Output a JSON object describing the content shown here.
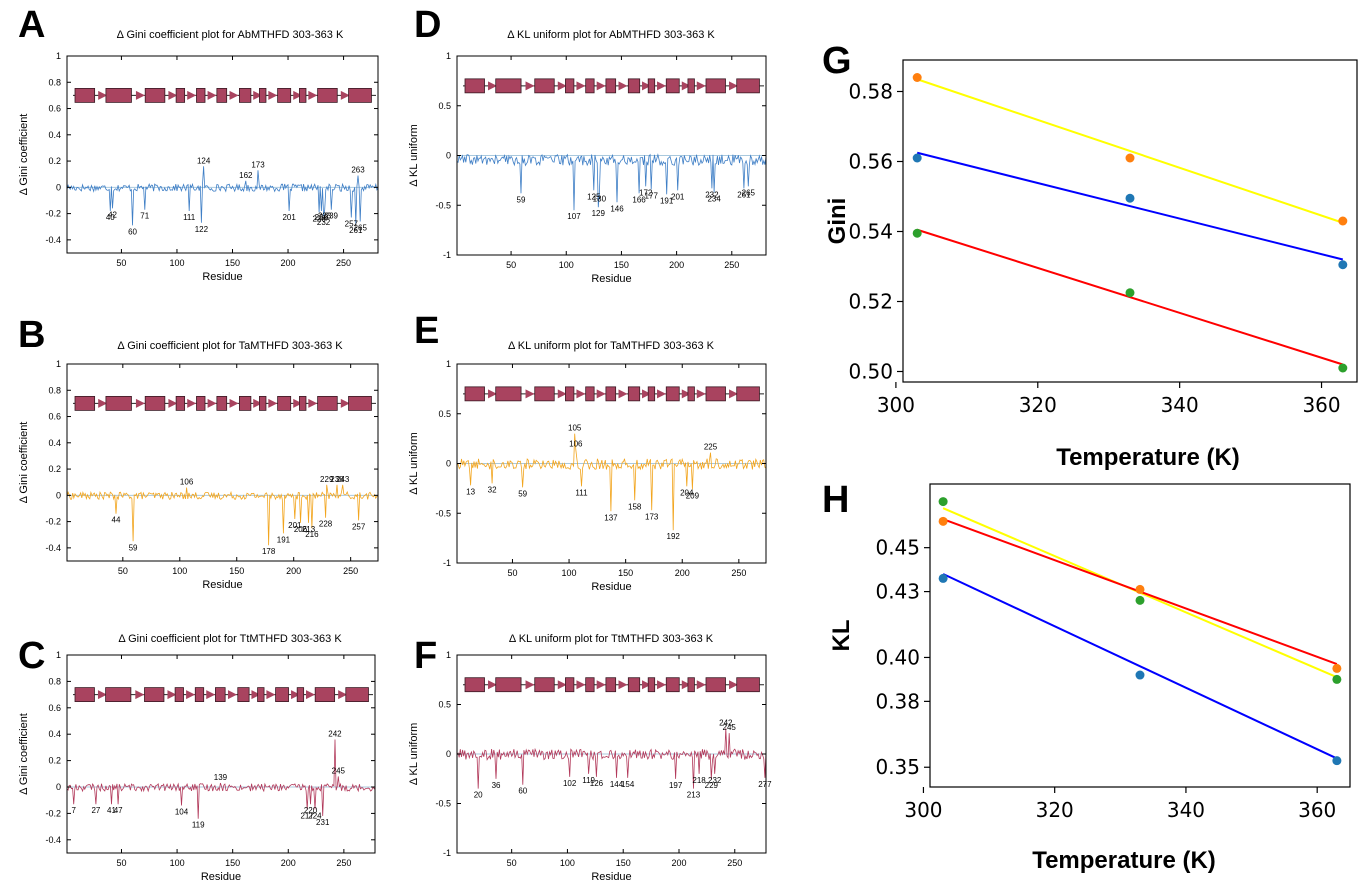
{
  "chart_data": [
    {
      "panel_label": "A",
      "type": "line",
      "title": "Δ Gini coefficient plot for AbMTHFD 303-363 K",
      "xlabel": "Residue",
      "ylabel": "Δ Gini coefficient",
      "xlim": [
        1,
        281
      ],
      "ylim": [
        -0.5,
        1
      ],
      "xticks": [
        "50",
        "100",
        "150",
        "200",
        "250"
      ],
      "yticks": [
        "-0.4",
        "-0.2",
        "0",
        "0.2",
        "0.4",
        "0.6",
        "0.8",
        "1"
      ],
      "series_color": "#3f7fc6",
      "residue_count": 281,
      "peaks": [
        {
          "label": "42",
          "x": 42,
          "y": -0.16
        },
        {
          "label": "40",
          "x": 40,
          "y": -0.18
        },
        {
          "label": "60",
          "x": 60,
          "y": -0.29
        },
        {
          "label": "71",
          "x": 71,
          "y": -0.17
        },
        {
          "label": "111",
          "x": 111,
          "y": -0.18
        },
        {
          "label": "122",
          "x": 122,
          "y": -0.27
        },
        {
          "label": "124",
          "x": 124,
          "y": 0.16
        },
        {
          "label": "162",
          "x": 162,
          "y": 0.05
        },
        {
          "label": "173",
          "x": 173,
          "y": 0.13
        },
        {
          "label": "201",
          "x": 201,
          "y": -0.18
        },
        {
          "label": "228",
          "x": 228,
          "y": -0.19
        },
        {
          "label": "230",
          "x": 230,
          "y": -0.18
        },
        {
          "label": "233",
          "x": 233,
          "y": -0.17
        },
        {
          "label": "239",
          "x": 239,
          "y": -0.17
        },
        {
          "label": "232",
          "x": 232,
          "y": -0.22
        },
        {
          "label": "257",
          "x": 257,
          "y": -0.23
        },
        {
          "label": "263",
          "x": 263,
          "y": 0.09
        },
        {
          "label": "261",
          "x": 261,
          "y": -0.28
        },
        {
          "label": "265",
          "x": 265,
          "y": -0.26
        }
      ],
      "secondary_structure": [
        "rect",
        "arrow",
        "rect",
        "arrow",
        "rect",
        "arrow",
        "rect",
        "arrow",
        "rect",
        "arrow",
        "rect",
        "arrow",
        "rect",
        "arrow",
        "rect",
        "arrow",
        "rect",
        "arrow",
        "rect",
        "arrow",
        "rect",
        "arrow",
        "rect"
      ]
    },
    {
      "panel_label": "B",
      "type": "line",
      "title": "Δ Gini coefficient plot for TaMTHFD 303-363 K",
      "xlabel": "Residue",
      "ylabel": "Δ Gini coefficient",
      "xlim": [
        1,
        274
      ],
      "ylim": [
        -0.5,
        1
      ],
      "xticks": [
        "50",
        "100",
        "150",
        "200",
        "250"
      ],
      "yticks": [
        "-0.4",
        "-0.2",
        "0",
        "0.2",
        "0.4",
        "0.6",
        "0.8",
        "1"
      ],
      "series_color": "#f2a51e",
      "residue_count": 274,
      "peaks": [
        {
          "label": "44",
          "x": 44,
          "y": -0.14
        },
        {
          "label": "59",
          "x": 59,
          "y": -0.35
        },
        {
          "label": "106",
          "x": 106,
          "y": 0.06
        },
        {
          "label": "178",
          "x": 178,
          "y": -0.38
        },
        {
          "label": "191",
          "x": 191,
          "y": -0.29
        },
        {
          "label": "201",
          "x": 201,
          "y": -0.18
        },
        {
          "label": "206",
          "x": 206,
          "y": -0.21
        },
        {
          "label": "213",
          "x": 213,
          "y": -0.21
        },
        {
          "label": "216",
          "x": 216,
          "y": -0.25
        },
        {
          "label": "228",
          "x": 228,
          "y": -0.17
        },
        {
          "label": "229",
          "x": 229,
          "y": 0.08
        },
        {
          "label": "238",
          "x": 238,
          "y": 0.08
        },
        {
          "label": "243",
          "x": 243,
          "y": 0.08
        },
        {
          "label": "257",
          "x": 257,
          "y": -0.19
        }
      ],
      "secondary_structure": [
        "rect",
        "arrow",
        "rect",
        "arrow",
        "rect",
        "arrow",
        "rect",
        "arrow",
        "rect",
        "arrow",
        "rect",
        "arrow",
        "rect",
        "arrow",
        "rect",
        "arrow",
        "rect",
        "arrow",
        "rect",
        "arrow",
        "rect",
        "arrow",
        "rect"
      ]
    },
    {
      "panel_label": "C",
      "type": "line",
      "title": "Δ Gini coefficient plot for TtMTHFD 303-363 K",
      "xlabel": "Residue",
      "ylabel": "Δ Gini coefficient",
      "xlim": [
        1,
        278
      ],
      "ylim": [
        -0.5,
        1
      ],
      "xticks": [
        "50",
        "100",
        "150",
        "200",
        "250"
      ],
      "yticks": [
        "-0.4",
        "-0.2",
        "0",
        "0.2",
        "0.4",
        "0.6",
        "0.8",
        "1"
      ],
      "series_color": "#b23a5b",
      "residue_count": 278,
      "peaks": [
        {
          "label": "7",
          "x": 7,
          "y": -0.13
        },
        {
          "label": "27",
          "x": 27,
          "y": -0.13
        },
        {
          "label": "41",
          "x": 41,
          "y": -0.13
        },
        {
          "label": "47",
          "x": 47,
          "y": -0.13
        },
        {
          "label": "104",
          "x": 104,
          "y": -0.14
        },
        {
          "label": "119",
          "x": 119,
          "y": -0.24
        },
        {
          "label": "139",
          "x": 139,
          "y": 0.03
        },
        {
          "label": "217",
          "x": 217,
          "y": -0.17
        },
        {
          "label": "220",
          "x": 220,
          "y": -0.13
        },
        {
          "label": "224",
          "x": 224,
          "y": -0.17
        },
        {
          "label": "231",
          "x": 231,
          "y": -0.22
        },
        {
          "label": "242",
          "x": 242,
          "y": 0.36
        },
        {
          "label": "245",
          "x": 245,
          "y": 0.08
        }
      ],
      "secondary_structure": [
        "rect",
        "arrow",
        "rect",
        "arrow",
        "rect",
        "arrow",
        "rect",
        "arrow",
        "rect",
        "arrow",
        "rect",
        "arrow",
        "rect",
        "arrow",
        "rect",
        "arrow",
        "rect",
        "arrow",
        "rect",
        "arrow",
        "rect",
        "arrow",
        "rect"
      ]
    },
    {
      "panel_label": "D",
      "type": "line",
      "title": "Δ KL uniform  plot for AbMTHFD 303-363 K",
      "xlabel": "Residue",
      "ylabel": "Δ KL uniform",
      "xlim": [
        1,
        281
      ],
      "ylim": [
        -1,
        1
      ],
      "xticks": [
        "50",
        "100",
        "150",
        "200",
        "250"
      ],
      "yticks": [
        "-1",
        "-0.5",
        "0",
        "0.5",
        "1"
      ],
      "series_color": "#3f7fc6",
      "residue_count": 281,
      "peaks": [
        {
          "label": "59",
          "x": 59,
          "y": -0.38
        },
        {
          "label": "107",
          "x": 107,
          "y": -0.55
        },
        {
          "label": "125",
          "x": 125,
          "y": -0.35
        },
        {
          "label": "130",
          "x": 130,
          "y": -0.37
        },
        {
          "label": "129",
          "x": 129,
          "y": -0.52
        },
        {
          "label": "146",
          "x": 146,
          "y": -0.47
        },
        {
          "label": "166",
          "x": 166,
          "y": -0.38
        },
        {
          "label": "172",
          "x": 172,
          "y": -0.31
        },
        {
          "label": "177",
          "x": 177,
          "y": -0.34
        },
        {
          "label": "191",
          "x": 191,
          "y": -0.39
        },
        {
          "label": "201",
          "x": 201,
          "y": -0.35
        },
        {
          "label": "232",
          "x": 232,
          "y": -0.33
        },
        {
          "label": "234",
          "x": 234,
          "y": -0.37
        },
        {
          "label": "261",
          "x": 261,
          "y": -0.33
        },
        {
          "label": "265",
          "x": 265,
          "y": -0.31
        }
      ],
      "secondary_structure": [
        "rect",
        "arrow",
        "rect",
        "arrow",
        "rect",
        "arrow",
        "rect",
        "arrow",
        "rect",
        "arrow",
        "rect",
        "arrow",
        "rect",
        "arrow",
        "rect",
        "arrow",
        "rect",
        "arrow",
        "rect",
        "arrow",
        "rect",
        "arrow",
        "rect"
      ]
    },
    {
      "panel_label": "E",
      "type": "line",
      "title": "Δ KL uniform  plot for TaMTHFD 303-363 K",
      "xlabel": "Residue",
      "ylabel": "Δ KL uniform",
      "xlim": [
        1,
        274
      ],
      "ylim": [
        -1,
        1
      ],
      "xticks": [
        "50",
        "100",
        "150",
        "200",
        "250"
      ],
      "yticks": [
        "-1",
        "-0.5",
        "0",
        "0.5",
        "1"
      ],
      "series_color": "#f2a51e",
      "residue_count": 274,
      "peaks": [
        {
          "label": "13",
          "x": 13,
          "y": -0.22
        },
        {
          "label": "32",
          "x": 32,
          "y": -0.2
        },
        {
          "label": "59",
          "x": 59,
          "y": -0.24
        },
        {
          "label": "105",
          "x": 105,
          "y": 0.3
        },
        {
          "label": "106",
          "x": 106,
          "y": 0.14
        },
        {
          "label": "111",
          "x": 111,
          "y": -0.23
        },
        {
          "label": "137",
          "x": 137,
          "y": -0.48
        },
        {
          "label": "158",
          "x": 158,
          "y": -0.37
        },
        {
          "label": "173",
          "x": 173,
          "y": -0.47
        },
        {
          "label": "192",
          "x": 192,
          "y": -0.67
        },
        {
          "label": "204",
          "x": 204,
          "y": -0.23
        },
        {
          "label": "209",
          "x": 209,
          "y": -0.26
        },
        {
          "label": "225",
          "x": 225,
          "y": 0.11
        }
      ],
      "secondary_structure": [
        "rect",
        "arrow",
        "rect",
        "arrow",
        "rect",
        "arrow",
        "rect",
        "arrow",
        "rect",
        "arrow",
        "rect",
        "arrow",
        "rect",
        "arrow",
        "rect",
        "arrow",
        "rect",
        "arrow",
        "rect",
        "arrow",
        "rect",
        "arrow",
        "rect"
      ]
    },
    {
      "panel_label": "F",
      "type": "line",
      "title": "Δ KL uniform  plot for TtMTHFD 303-363 K",
      "xlabel": "Residue",
      "ylabel": "Δ KL uniform",
      "xlim": [
        1,
        278
      ],
      "ylim": [
        -1,
        1
      ],
      "xticks": [
        "50",
        "100",
        "150",
        "200",
        "250"
      ],
      "yticks": [
        "-1",
        "-0.5",
        "0",
        "0.5",
        "1"
      ],
      "series_color": "#b23a5b",
      "residue_count": 278,
      "peaks": [
        {
          "label": "20",
          "x": 20,
          "y": -0.35
        },
        {
          "label": "36",
          "x": 36,
          "y": -0.25
        },
        {
          "label": "60",
          "x": 60,
          "y": -0.31
        },
        {
          "label": "102",
          "x": 102,
          "y": -0.23
        },
        {
          "label": "119",
          "x": 119,
          "y": -0.2
        },
        {
          "label": "126",
          "x": 126,
          "y": -0.23
        },
        {
          "label": "144",
          "x": 144,
          "y": -0.24
        },
        {
          "label": "154",
          "x": 154,
          "y": -0.24
        },
        {
          "label": "197",
          "x": 197,
          "y": -0.25
        },
        {
          "label": "213",
          "x": 213,
          "y": -0.35
        },
        {
          "label": "218",
          "x": 218,
          "y": -0.2
        },
        {
          "label": "229",
          "x": 229,
          "y": -0.25
        },
        {
          "label": "232",
          "x": 232,
          "y": -0.2
        },
        {
          "label": "242",
          "x": 242,
          "y": 0.26
        },
        {
          "label": "245",
          "x": 245,
          "y": 0.21
        },
        {
          "label": "277",
          "x": 277,
          "y": -0.24
        }
      ],
      "secondary_structure": [
        "rect",
        "arrow",
        "rect",
        "arrow",
        "rect",
        "arrow",
        "rect",
        "arrow",
        "rect",
        "arrow",
        "rect",
        "arrow",
        "rect",
        "arrow",
        "rect",
        "arrow",
        "rect",
        "arrow",
        "rect",
        "arrow",
        "rect",
        "arrow",
        "rect"
      ]
    },
    {
      "panel_label": "G",
      "type": "scatter",
      "xlabel": "Temperature (K)",
      "ylabel": "Gini",
      "xlim": [
        301,
        365
      ],
      "ylim": [
        0.497,
        0.589
      ],
      "xticks": [
        "300",
        "320",
        "340",
        "360"
      ],
      "yticks": [
        "0.50",
        "0.52",
        "0.54",
        "0.56",
        "0.58"
      ],
      "x": [
        303,
        333,
        363
      ],
      "series": [
        {
          "color": "#ff7f0e",
          "values": [
            0.584,
            0.561,
            0.543
          ],
          "fit_color": "#ffff00",
          "fit": [
            0.5835,
            0.5425
          ]
        },
        {
          "color": "#1f77b4",
          "values": [
            0.561,
            0.5495,
            0.5305
          ],
          "fit_color": "#0000ff",
          "fit": [
            0.5625,
            0.532
          ]
        },
        {
          "color": "#2ca02c",
          "values": [
            0.5395,
            0.5225,
            0.501
          ],
          "fit_color": "#ff0000",
          "fit": [
            0.5405,
            0.502
          ]
        }
      ]
    },
    {
      "panel_label": "H",
      "type": "scatter",
      "xlabel": "Temperature (K)",
      "ylabel": "KL",
      "xlim": [
        301,
        365
      ],
      "ylim": [
        0.341,
        0.479
      ],
      "xticks": [
        "300",
        "320",
        "340",
        "360"
      ],
      "yticks": [
        "0.35",
        "0.38",
        "0.40",
        "0.43",
        "0.45"
      ],
      "x": [
        303,
        333,
        363
      ],
      "series": [
        {
          "color": "#2ca02c",
          "values": [
            0.471,
            0.426,
            0.39
          ],
          "fit_color": "#ffff00",
          "fit": [
            0.468,
            0.391
          ]
        },
        {
          "color": "#ff7f0e",
          "values": [
            0.462,
            0.431,
            0.395
          ],
          "fit_color": "#ff0000",
          "fit": [
            0.463,
            0.397
          ]
        },
        {
          "color": "#1f77b4",
          "values": [
            0.436,
            0.392,
            0.353
          ],
          "fit_color": "#0000ff",
          "fit": [
            0.438,
            0.354
          ]
        }
      ]
    }
  ]
}
